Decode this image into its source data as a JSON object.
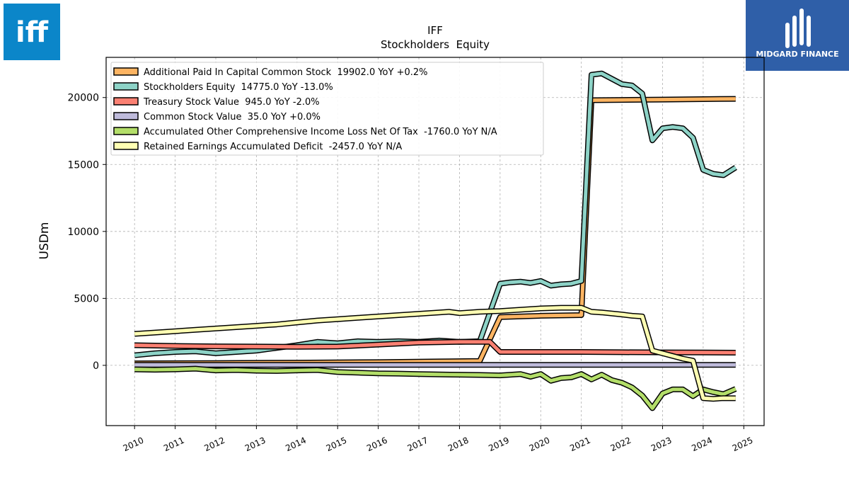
{
  "branding": {
    "company_logo_text": "iff",
    "company_logo_color": "#0b86c9",
    "publisher_logo_text": "MIDGARD FINANCE",
    "publisher_logo_color": "#2f5fa8"
  },
  "chart_data": {
    "type": "line",
    "title": "IFF",
    "subtitle": "Stockholders  Equity",
    "xlabel": "",
    "ylabel": "USDm",
    "xlim": [
      2009.3,
      2025.5
    ],
    "ylim": [
      -4500,
      23000
    ],
    "xticks": [
      "2010",
      "2011",
      "2012",
      "2013",
      "2014",
      "2015",
      "2016",
      "2017",
      "2018",
      "2019",
      "2020",
      "2021",
      "2022",
      "2023",
      "2024",
      "2025"
    ],
    "yticks": [
      "0",
      "5000",
      "10000",
      "15000",
      "20000"
    ],
    "grid": true,
    "legend_position": "top-left",
    "series": [
      {
        "name": "Additional Paid In Capital Common Stock  19902.0 YoY +0.2%",
        "color": "#fdb462",
        "points": [
          [
            2010.0,
            150
          ],
          [
            2012.0,
            170
          ],
          [
            2014.0,
            200
          ],
          [
            2016.0,
            240
          ],
          [
            2017.5,
            290
          ],
          [
            2018.5,
            330
          ],
          [
            2019.0,
            3600
          ],
          [
            2020.0,
            3700
          ],
          [
            2021.0,
            3750
          ],
          [
            2021.25,
            19800
          ],
          [
            2022.0,
            19820
          ],
          [
            2023.0,
            19850
          ],
          [
            2024.0,
            19880
          ],
          [
            2024.8,
            19902
          ]
        ]
      },
      {
        "name": "Stockholders Equity  14775.0 YoY -13.0%",
        "color": "#8dd3c7",
        "points": [
          [
            2010.0,
            750
          ],
          [
            2010.5,
            900
          ],
          [
            2011.0,
            1000
          ],
          [
            2011.5,
            1050
          ],
          [
            2012.0,
            900
          ],
          [
            2012.5,
            1000
          ],
          [
            2013.0,
            1100
          ],
          [
            2013.5,
            1300
          ],
          [
            2014.0,
            1500
          ],
          [
            2014.5,
            1750
          ],
          [
            2015.0,
            1650
          ],
          [
            2015.5,
            1800
          ],
          [
            2016.0,
            1750
          ],
          [
            2016.5,
            1800
          ],
          [
            2017.0,
            1750
          ],
          [
            2017.5,
            1850
          ],
          [
            2018.0,
            1750
          ],
          [
            2018.5,
            1800
          ],
          [
            2019.0,
            6100
          ],
          [
            2019.25,
            6200
          ],
          [
            2019.5,
            6250
          ],
          [
            2019.75,
            6150
          ],
          [
            2020.0,
            6300
          ],
          [
            2020.25,
            5950
          ],
          [
            2020.5,
            6050
          ],
          [
            2020.75,
            6100
          ],
          [
            2021.0,
            6300
          ],
          [
            2021.25,
            21700
          ],
          [
            2021.5,
            21800
          ],
          [
            2022.0,
            21000
          ],
          [
            2022.25,
            20900
          ],
          [
            2022.5,
            20300
          ],
          [
            2022.75,
            16800
          ],
          [
            2023.0,
            17700
          ],
          [
            2023.25,
            17800
          ],
          [
            2023.5,
            17700
          ],
          [
            2023.75,
            17000
          ],
          [
            2024.0,
            14600
          ],
          [
            2024.25,
            14300
          ],
          [
            2024.5,
            14200
          ],
          [
            2024.8,
            14775
          ]
        ]
      },
      {
        "name": "Treasury Stock Value  945.0 YoY -2.0%",
        "color": "#fb8072",
        "points": [
          [
            2010.0,
            1500
          ],
          [
            2011.0,
            1450
          ],
          [
            2012.0,
            1420
          ],
          [
            2013.0,
            1400
          ],
          [
            2014.0,
            1380
          ],
          [
            2015.0,
            1400
          ],
          [
            2016.0,
            1550
          ],
          [
            2017.0,
            1700
          ],
          [
            2018.0,
            1750
          ],
          [
            2018.75,
            1750
          ],
          [
            2019.0,
            1000
          ],
          [
            2020.0,
            1000
          ],
          [
            2021.0,
            1000
          ],
          [
            2022.0,
            980
          ],
          [
            2023.0,
            970
          ],
          [
            2024.0,
            960
          ],
          [
            2024.8,
            945
          ]
        ]
      },
      {
        "name": "Common Stock Value  35.0 YoY +0.0%",
        "color": "#bebada",
        "points": [
          [
            2010.0,
            35
          ],
          [
            2024.8,
            35
          ]
        ]
      },
      {
        "name": "Accumulated Other Comprehensive Income Loss Net Of Tax  -1760.0 YoY N/A",
        "color": "#b3de69",
        "points": [
          [
            2010.0,
            -300
          ],
          [
            2010.5,
            -330
          ],
          [
            2011.0,
            -300
          ],
          [
            2011.5,
            -250
          ],
          [
            2012.0,
            -380
          ],
          [
            2012.5,
            -350
          ],
          [
            2013.0,
            -400
          ],
          [
            2013.5,
            -420
          ],
          [
            2014.0,
            -380
          ],
          [
            2014.5,
            -350
          ],
          [
            2015.0,
            -500
          ],
          [
            2015.5,
            -550
          ],
          [
            2016.0,
            -600
          ],
          [
            2016.5,
            -620
          ],
          [
            2017.0,
            -650
          ],
          [
            2017.5,
            -680
          ],
          [
            2018.0,
            -700
          ],
          [
            2018.5,
            -720
          ],
          [
            2019.0,
            -750
          ],
          [
            2019.5,
            -650
          ],
          [
            2019.75,
            -850
          ],
          [
            2020.0,
            -650
          ],
          [
            2020.25,
            -1150
          ],
          [
            2020.5,
            -950
          ],
          [
            2020.75,
            -900
          ],
          [
            2021.0,
            -650
          ],
          [
            2021.25,
            -1050
          ],
          [
            2021.5,
            -700
          ],
          [
            2021.75,
            -1100
          ],
          [
            2022.0,
            -1300
          ],
          [
            2022.25,
            -1650
          ],
          [
            2022.5,
            -2250
          ],
          [
            2022.75,
            -3200
          ],
          [
            2023.0,
            -2100
          ],
          [
            2023.25,
            -1800
          ],
          [
            2023.5,
            -1800
          ],
          [
            2023.75,
            -2300
          ],
          [
            2024.0,
            -1800
          ],
          [
            2024.25,
            -2000
          ],
          [
            2024.5,
            -2150
          ],
          [
            2024.8,
            -1760
          ]
        ]
      },
      {
        "name": "Retained Earnings Accumulated Deficit  -2457.0 YoY N/A",
        "color": "#ffffb3",
        "points": [
          [
            2010.0,
            2350
          ],
          [
            2010.5,
            2450
          ],
          [
            2011.0,
            2550
          ],
          [
            2011.5,
            2650
          ],
          [
            2012.0,
            2750
          ],
          [
            2012.5,
            2850
          ],
          [
            2013.0,
            2950
          ],
          [
            2013.5,
            3050
          ],
          [
            2014.0,
            3200
          ],
          [
            2014.5,
            3350
          ],
          [
            2015.0,
            3450
          ],
          [
            2015.5,
            3550
          ],
          [
            2016.0,
            3650
          ],
          [
            2016.5,
            3750
          ],
          [
            2017.0,
            3850
          ],
          [
            2017.5,
            3950
          ],
          [
            2017.75,
            4000
          ],
          [
            2018.0,
            3900
          ],
          [
            2018.5,
            4000
          ],
          [
            2019.0,
            4050
          ],
          [
            2019.5,
            4150
          ],
          [
            2020.0,
            4250
          ],
          [
            2020.5,
            4300
          ],
          [
            2021.0,
            4300
          ],
          [
            2021.25,
            4000
          ],
          [
            2021.5,
            3950
          ],
          [
            2022.0,
            3800
          ],
          [
            2022.25,
            3700
          ],
          [
            2022.5,
            3650
          ],
          [
            2022.75,
            1100
          ],
          [
            2023.0,
            900
          ],
          [
            2023.5,
            500
          ],
          [
            2023.75,
            350
          ],
          [
            2024.0,
            -2450
          ],
          [
            2024.25,
            -2500
          ],
          [
            2024.5,
            -2450
          ],
          [
            2024.8,
            -2457
          ]
        ]
      }
    ]
  }
}
